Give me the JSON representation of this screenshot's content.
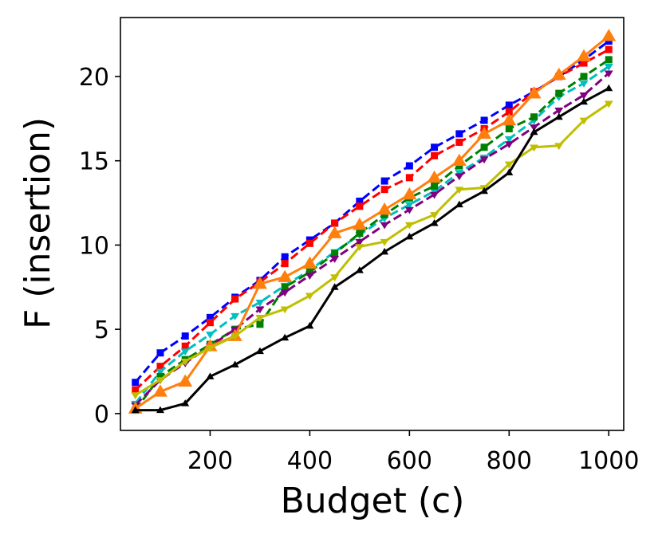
{
  "chart_data": {
    "type": "line",
    "xlabel": "Budget (c)",
    "ylabel": "F (insertion)",
    "xlim": [
      20,
      1030
    ],
    "ylim": [
      -1,
      23.5
    ],
    "xticks": [
      200,
      400,
      600,
      800,
      1000
    ],
    "yticks": [
      0,
      5,
      10,
      15,
      20
    ],
    "xtick_labels": [
      "200",
      "400",
      "600",
      "800",
      "1000"
    ],
    "ytick_labels": [
      "0",
      "5",
      "10",
      "15",
      "20"
    ],
    "grid": false,
    "x": [
      50,
      100,
      150,
      200,
      250,
      300,
      350,
      400,
      450,
      500,
      550,
      600,
      650,
      700,
      750,
      800,
      850,
      900,
      950,
      1000
    ],
    "series": [
      {
        "color": "#0000ff",
        "linestyle": "dashed",
        "marker": "square",
        "values": [
          1.85,
          3.6,
          4.6,
          5.7,
          6.9,
          7.9,
          9.3,
          10.3,
          11.3,
          12.6,
          13.8,
          14.7,
          15.8,
          16.6,
          17.4,
          18.3,
          19.1,
          20.0,
          21.0,
          22.1
        ]
      },
      {
        "color": "#ff0000",
        "linestyle": "dashed",
        "marker": "square",
        "values": [
          1.4,
          2.8,
          4.0,
          5.4,
          6.8,
          7.8,
          8.9,
          10.1,
          11.3,
          12.3,
          13.3,
          14.0,
          15.3,
          16.1,
          16.9,
          17.9,
          19.1,
          20.0,
          20.8,
          21.6
        ]
      },
      {
        "color": "#00bfbf",
        "linestyle": "dashed",
        "marker": "triangle-down",
        "values": [
          0.6,
          2.5,
          3.7,
          4.7,
          5.8,
          6.6,
          7.6,
          8.5,
          9.6,
          10.6,
          11.6,
          12.4,
          13.2,
          14.3,
          15.2,
          16.3,
          17.4,
          18.8,
          19.6,
          20.6
        ]
      },
      {
        "color": "#007f00",
        "linestyle": "dashed",
        "marker": "square",
        "values": [
          0.2,
          2.2,
          3.2,
          4.1,
          5.0,
          5.3,
          7.5,
          8.4,
          9.5,
          10.7,
          11.8,
          12.8,
          13.5,
          14.7,
          15.8,
          16.9,
          17.6,
          19.0,
          20.0,
          21.0
        ]
      },
      {
        "color": "#800080",
        "linestyle": "dashed",
        "marker": "triangle-down",
        "values": [
          0.5,
          2.0,
          3.0,
          4.0,
          5.0,
          6.2,
          7.2,
          8.2,
          9.2,
          10.2,
          11.2,
          12.1,
          13.0,
          14.1,
          15.1,
          16.0,
          17.0,
          18.0,
          18.9,
          20.2
        ]
      },
      {
        "color": "#ff7f0e",
        "linestyle": "solid",
        "marker": "triangle-up",
        "values": [
          0.3,
          1.3,
          1.9,
          4.0,
          4.6,
          7.7,
          8.1,
          8.9,
          10.7,
          11.2,
          12.1,
          13.0,
          14.0,
          15.0,
          16.6,
          17.4,
          19.0,
          20.1,
          21.2,
          22.4
        ]
      },
      {
        "color": "#bfbf00",
        "linestyle": "solid",
        "marker": "triangle-down",
        "values": [
          1.1,
          2.0,
          3.1,
          3.9,
          4.6,
          5.7,
          6.2,
          7.0,
          8.1,
          9.9,
          10.2,
          11.2,
          11.8,
          13.3,
          13.4,
          14.8,
          15.8,
          15.9,
          17.4,
          18.4
        ]
      },
      {
        "color": "#000000",
        "linestyle": "solid",
        "marker": "triangle-up",
        "values": [
          0.2,
          0.2,
          0.6,
          2.2,
          2.9,
          3.7,
          4.5,
          5.2,
          7.5,
          8.5,
          9.6,
          10.5,
          11.3,
          12.4,
          13.2,
          14.3,
          16.7,
          17.6,
          18.5,
          19.3
        ]
      }
    ]
  }
}
